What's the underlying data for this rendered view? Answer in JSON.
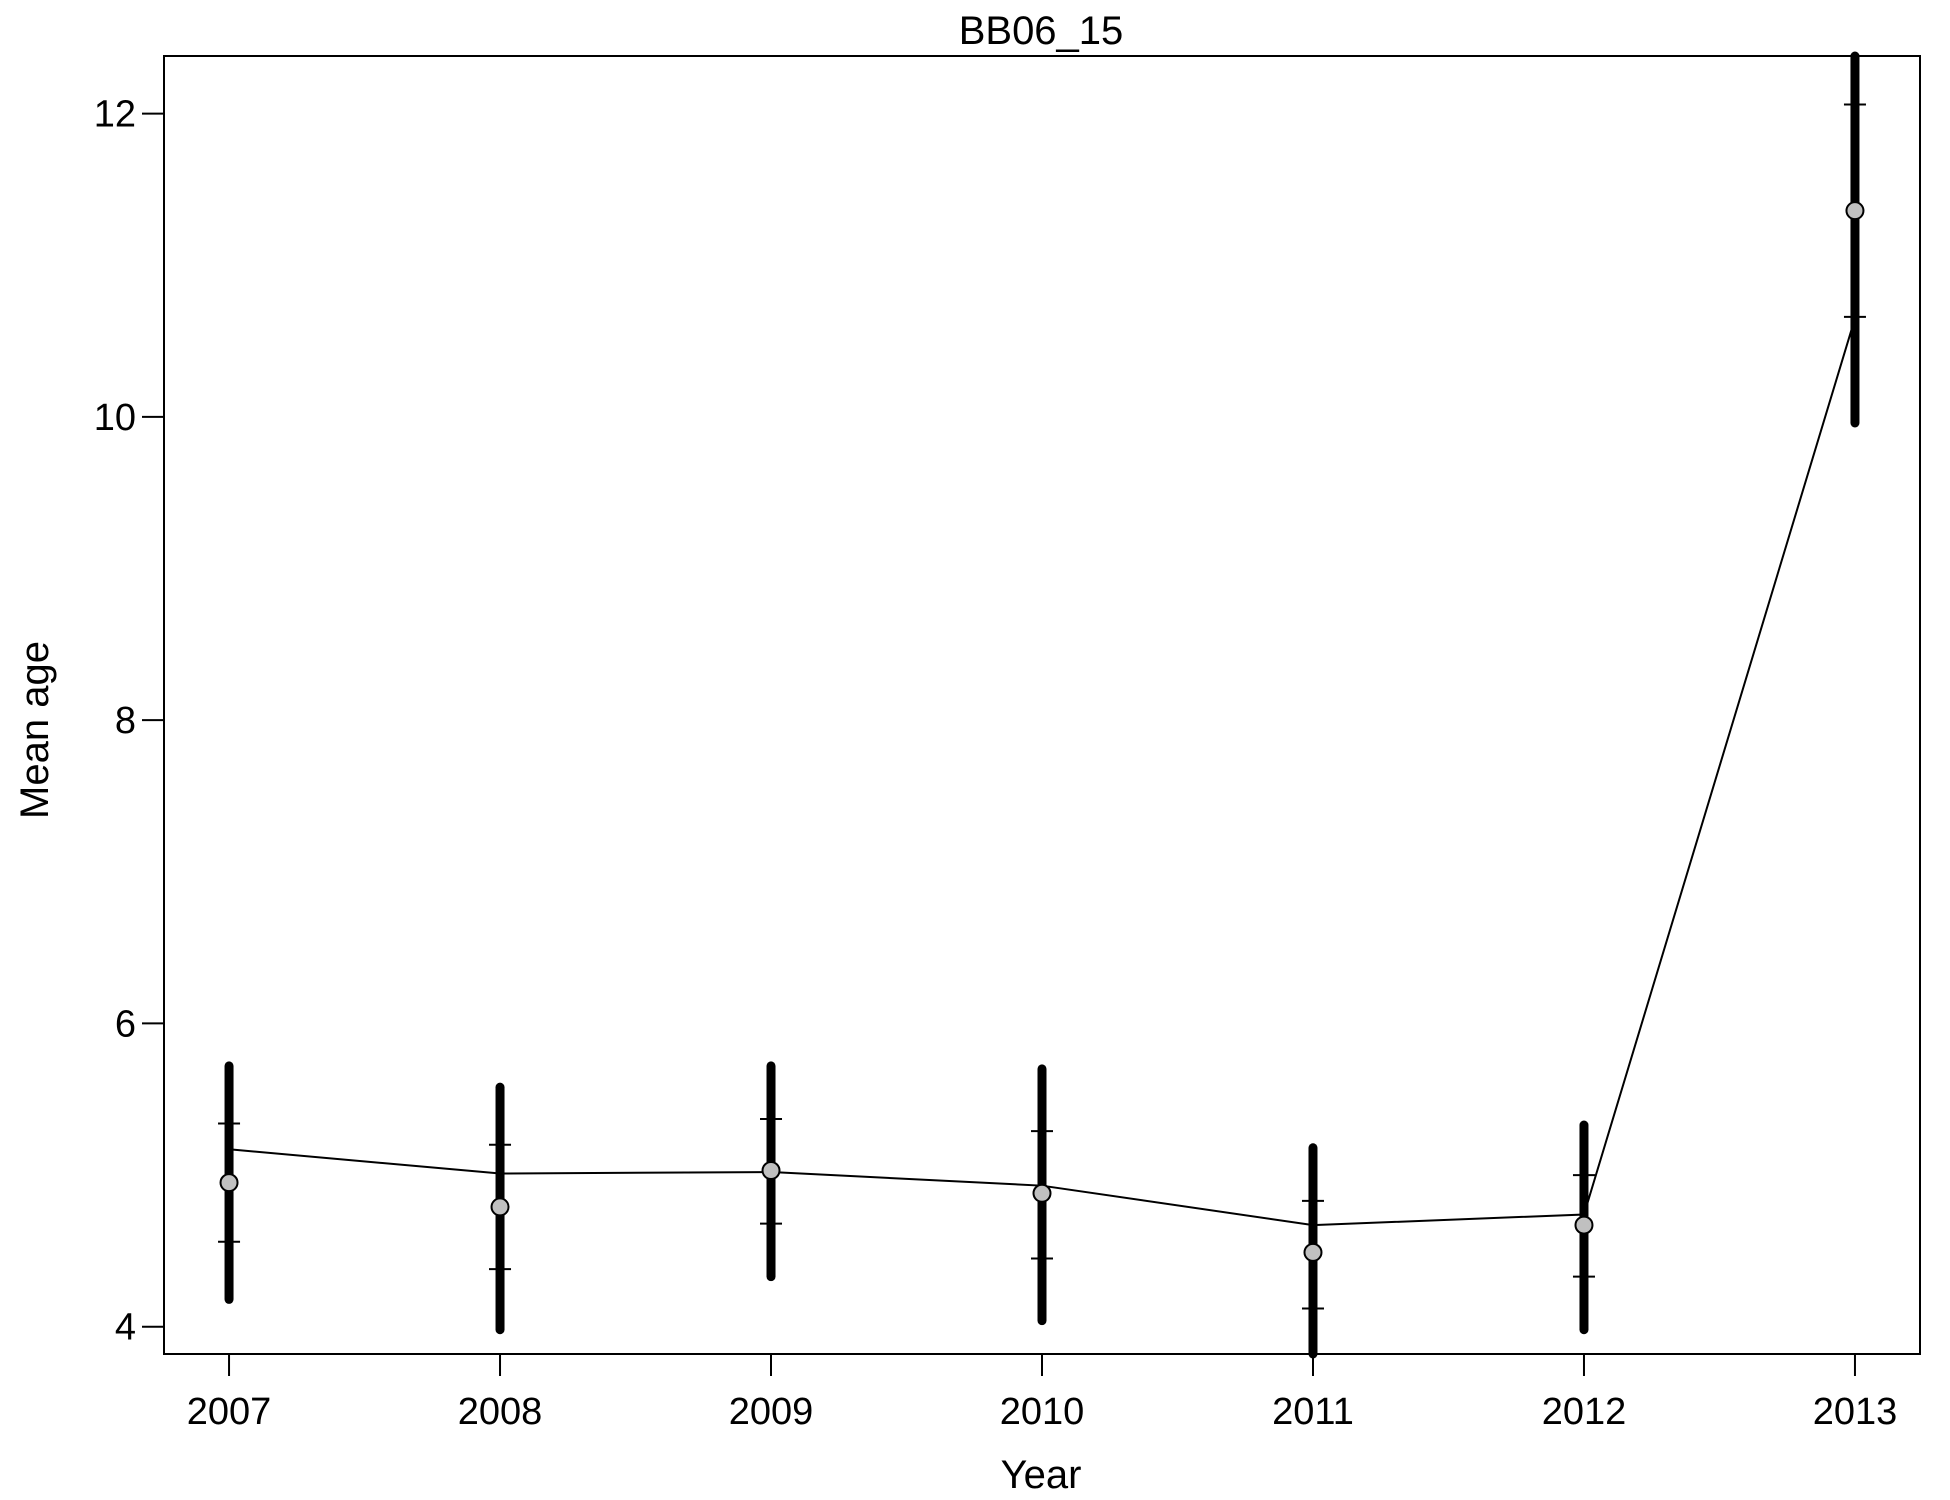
{
  "chart_data": {
    "type": "line",
    "title": "BB06_15",
    "xlabel": "Year",
    "ylabel": "Mean age",
    "x": [
      2007,
      2008,
      2009,
      2010,
      2011,
      2012,
      2013
    ],
    "xlim": [
      2006.76,
      2013.24
    ],
    "ylim": [
      3.82,
      12.38
    ],
    "y_ticks": [
      4,
      6,
      8,
      10,
      12
    ],
    "grid": false,
    "legend": "none",
    "series": [
      {
        "kind": "expected-line",
        "values": [
          5.17,
          5.01,
          5.02,
          4.93,
          4.67,
          4.74,
          10.65
        ]
      },
      {
        "kind": "observed-points",
        "values": [
          4.95,
          4.79,
          5.03,
          4.88,
          4.49,
          4.67,
          11.36
        ],
        "ci_inner_low": [
          4.56,
          4.38,
          4.68,
          4.45,
          4.12,
          4.33,
          10.66
        ],
        "ci_inner_high": [
          5.34,
          5.2,
          5.37,
          5.29,
          4.83,
          5.0,
          12.06
        ],
        "ci_outer_low": [
          4.18,
          3.98,
          4.33,
          4.04,
          3.82,
          3.98,
          9.96
        ],
        "ci_outer_high": [
          5.72,
          5.58,
          5.72,
          5.7,
          5.18,
          5.33,
          12.38
        ]
      }
    ],
    "colors": {
      "line": "#000000",
      "point_fill": "#c0c0c0",
      "point_stroke": "#000000",
      "axis": "#000000",
      "background": "#ffffff"
    }
  }
}
